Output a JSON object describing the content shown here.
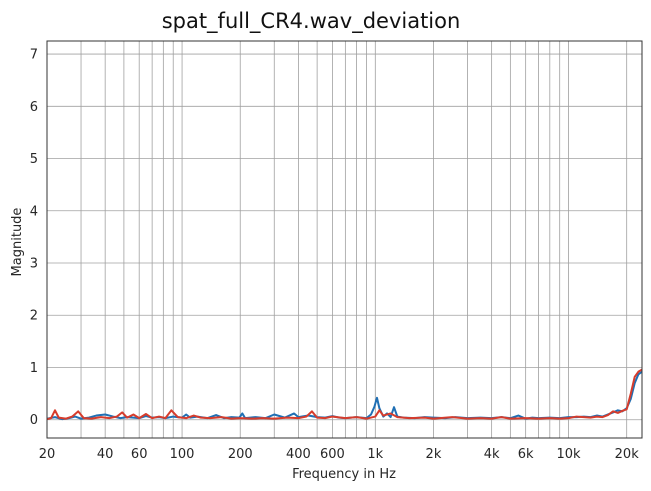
{
  "chart_data": {
    "type": "line",
    "title": "spat_full_CR4.wav_deviation",
    "xlabel": "Frequency in Hz",
    "ylabel": "Magnitude",
    "x_scale": "log",
    "xlim": [
      20,
      24000
    ],
    "ylim": [
      -0.35,
      7.25
    ],
    "grid": true,
    "x_ticks": [
      {
        "value": 20,
        "label": "20"
      },
      {
        "value": 40,
        "label": "40"
      },
      {
        "value": 60,
        "label": "60"
      },
      {
        "value": 100,
        "label": "100"
      },
      {
        "value": 200,
        "label": "200"
      },
      {
        "value": 400,
        "label": "400"
      },
      {
        "value": 600,
        "label": "600"
      },
      {
        "value": 1000,
        "label": "1k"
      },
      {
        "value": 2000,
        "label": "2k"
      },
      {
        "value": 4000,
        "label": "4k"
      },
      {
        "value": 6000,
        "label": "6k"
      },
      {
        "value": 10000,
        "label": "10k"
      },
      {
        "value": 20000,
        "label": "20k"
      }
    ],
    "x_minor_gridlines": [
      30,
      50,
      70,
      80,
      90,
      300,
      500,
      700,
      800,
      900,
      3000,
      5000,
      7000,
      8000,
      9000
    ],
    "y_ticks": [
      0,
      1,
      2,
      3,
      4,
      5,
      6,
      7
    ],
    "series": [
      {
        "color": "#1f6fb4",
        "points": [
          [
            20,
            0.02
          ],
          [
            22,
            0.05
          ],
          [
            24,
            0.01
          ],
          [
            26,
            0.03
          ],
          [
            28,
            0.06
          ],
          [
            30,
            0.02
          ],
          [
            33,
            0.04
          ],
          [
            36,
            0.08
          ],
          [
            40,
            0.1
          ],
          [
            44,
            0.06
          ],
          [
            48,
            0.03
          ],
          [
            52,
            0.05
          ],
          [
            56,
            0.04
          ],
          [
            60,
            0.03
          ],
          [
            65,
            0.07
          ],
          [
            70,
            0.04
          ],
          [
            76,
            0.05
          ],
          [
            82,
            0.03
          ],
          [
            90,
            0.06
          ],
          [
            100,
            0.04
          ],
          [
            105,
            0.1
          ],
          [
            110,
            0.04
          ],
          [
            120,
            0.06
          ],
          [
            135,
            0.03
          ],
          [
            150,
            0.09
          ],
          [
            165,
            0.03
          ],
          [
            180,
            0.05
          ],
          [
            198,
            0.04
          ],
          [
            205,
            0.12
          ],
          [
            212,
            0.03
          ],
          [
            240,
            0.05
          ],
          [
            270,
            0.03
          ],
          [
            300,
            0.1
          ],
          [
            340,
            0.04
          ],
          [
            380,
            0.12
          ],
          [
            400,
            0.05
          ],
          [
            450,
            0.08
          ],
          [
            500,
            0.05
          ],
          [
            550,
            0.04
          ],
          [
            600,
            0.07
          ],
          [
            650,
            0.04
          ],
          [
            700,
            0.03
          ],
          [
            800,
            0.05
          ],
          [
            900,
            0.03
          ],
          [
            950,
            0.1
          ],
          [
            990,
            0.25
          ],
          [
            1020,
            0.42
          ],
          [
            1050,
            0.22
          ],
          [
            1100,
            0.06
          ],
          [
            1150,
            0.12
          ],
          [
            1200,
            0.05
          ],
          [
            1250,
            0.24
          ],
          [
            1300,
            0.06
          ],
          [
            1400,
            0.04
          ],
          [
            1600,
            0.03
          ],
          [
            1800,
            0.05
          ],
          [
            2000,
            0.04
          ],
          [
            2300,
            0.03
          ],
          [
            2600,
            0.05
          ],
          [
            3000,
            0.03
          ],
          [
            3500,
            0.04
          ],
          [
            4000,
            0.03
          ],
          [
            4500,
            0.05
          ],
          [
            5000,
            0.03
          ],
          [
            5500,
            0.08
          ],
          [
            6000,
            0.02
          ],
          [
            6500,
            0.04
          ],
          [
            7000,
            0.03
          ],
          [
            8000,
            0.04
          ],
          [
            9000,
            0.03
          ],
          [
            10000,
            0.05
          ],
          [
            11000,
            0.05
          ],
          [
            12000,
            0.06
          ],
          [
            13000,
            0.05
          ],
          [
            14000,
            0.08
          ],
          [
            15000,
            0.06
          ],
          [
            16000,
            0.1
          ],
          [
            17000,
            0.14
          ],
          [
            18000,
            0.18
          ],
          [
            19000,
            0.16
          ],
          [
            20000,
            0.22
          ],
          [
            21000,
            0.4
          ],
          [
            22000,
            0.7
          ],
          [
            23000,
            0.87
          ],
          [
            24000,
            0.92
          ]
        ]
      },
      {
        "color": "#d63c2c",
        "points": [
          [
            20,
            0.01
          ],
          [
            21,
            0.03
          ],
          [
            22,
            0.18
          ],
          [
            23,
            0.04
          ],
          [
            25,
            0.02
          ],
          [
            27,
            0.06
          ],
          [
            29,
            0.16
          ],
          [
            31,
            0.03
          ],
          [
            34,
            0.02
          ],
          [
            38,
            0.05
          ],
          [
            42,
            0.03
          ],
          [
            46,
            0.06
          ],
          [
            49,
            0.14
          ],
          [
            52,
            0.04
          ],
          [
            56,
            0.1
          ],
          [
            60,
            0.03
          ],
          [
            65,
            0.11
          ],
          [
            70,
            0.03
          ],
          [
            76,
            0.06
          ],
          [
            82,
            0.03
          ],
          [
            88,
            0.18
          ],
          [
            95,
            0.05
          ],
          [
            105,
            0.03
          ],
          [
            115,
            0.08
          ],
          [
            125,
            0.04
          ],
          [
            140,
            0.03
          ],
          [
            160,
            0.05
          ],
          [
            180,
            0.02
          ],
          [
            200,
            0.03
          ],
          [
            230,
            0.02
          ],
          [
            260,
            0.03
          ],
          [
            300,
            0.02
          ],
          [
            350,
            0.04
          ],
          [
            400,
            0.03
          ],
          [
            440,
            0.06
          ],
          [
            470,
            0.16
          ],
          [
            500,
            0.04
          ],
          [
            550,
            0.03
          ],
          [
            600,
            0.06
          ],
          [
            700,
            0.03
          ],
          [
            800,
            0.05
          ],
          [
            900,
            0.02
          ],
          [
            1000,
            0.06
          ],
          [
            1050,
            0.18
          ],
          [
            1100,
            0.08
          ],
          [
            1200,
            0.12
          ],
          [
            1300,
            0.05
          ],
          [
            1500,
            0.03
          ],
          [
            1800,
            0.04
          ],
          [
            2000,
            0.02
          ],
          [
            2500,
            0.05
          ],
          [
            3000,
            0.02
          ],
          [
            3500,
            0.03
          ],
          [
            4000,
            0.02
          ],
          [
            4500,
            0.05
          ],
          [
            5000,
            0.02
          ],
          [
            6000,
            0.03
          ],
          [
            7000,
            0.02
          ],
          [
            8000,
            0.03
          ],
          [
            9000,
            0.02
          ],
          [
            10000,
            0.03
          ],
          [
            11000,
            0.06
          ],
          [
            12000,
            0.05
          ],
          [
            13000,
            0.04
          ],
          [
            14000,
            0.06
          ],
          [
            15000,
            0.05
          ],
          [
            16000,
            0.09
          ],
          [
            17000,
            0.16
          ],
          [
            18000,
            0.13
          ],
          [
            19000,
            0.17
          ],
          [
            20000,
            0.2
          ],
          [
            21000,
            0.5
          ],
          [
            22000,
            0.82
          ],
          [
            23000,
            0.92
          ],
          [
            24000,
            0.96
          ]
        ]
      }
    ]
  }
}
